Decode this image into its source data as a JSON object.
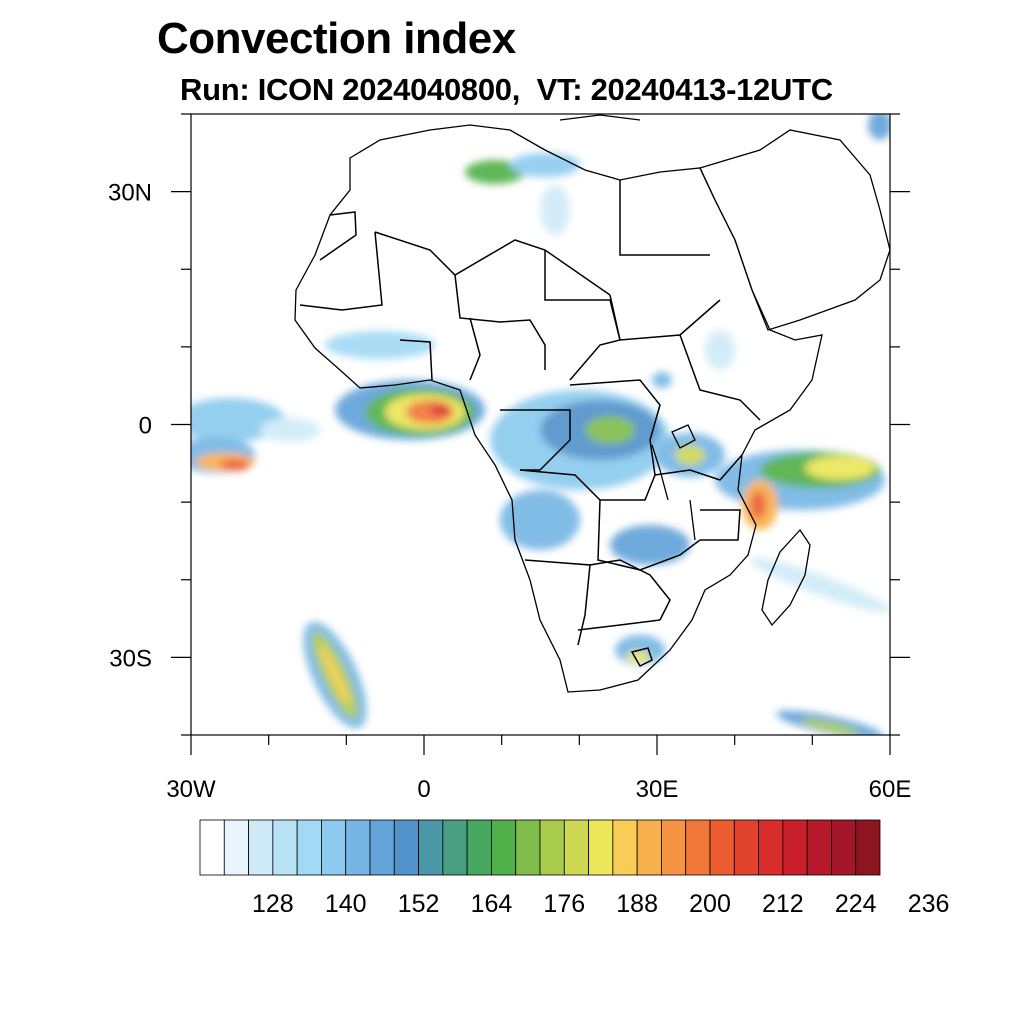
{
  "title": "Convection index",
  "subtitle": "Run: ICON 2024040800,  VT: 20240413-12UTC",
  "map": {
    "region": "Africa",
    "lon_range": [
      -30,
      60
    ],
    "lat_range": [
      -40,
      40
    ],
    "lon_ticks": [
      {
        "value": -30,
        "label": "30W"
      },
      {
        "value": 0,
        "label": "0"
      },
      {
        "value": 30,
        "label": "30E"
      },
      {
        "value": 60,
        "label": "60E"
      }
    ],
    "lat_ticks": [
      {
        "value": 30,
        "label": "30N"
      },
      {
        "value": 0,
        "label": "0"
      },
      {
        "value": -30,
        "label": "30S"
      }
    ]
  },
  "colorbar": {
    "levels_start": 120,
    "levels_step": 4,
    "colors": [
      "#ffffff",
      "#e8f5fc",
      "#cfebf8",
      "#b8e2f6",
      "#a2d9f4",
      "#8ccbee",
      "#76b6e4",
      "#63a3d9",
      "#5393cb",
      "#4b97a8",
      "#489f82",
      "#45a760",
      "#52b04a",
      "#80bd4c",
      "#a8cb4e",
      "#cfd852",
      "#ece65a",
      "#f8cc55",
      "#f8b04c",
      "#f69443",
      "#f2773a",
      "#ec5c31",
      "#e2432b",
      "#d92d2b",
      "#c91f2a",
      "#b7192a",
      "#a3162a",
      "#8e1420"
    ],
    "labels": [
      "128",
      "140",
      "152",
      "164",
      "176",
      "188",
      "200",
      "212",
      "224",
      "236"
    ]
  }
}
